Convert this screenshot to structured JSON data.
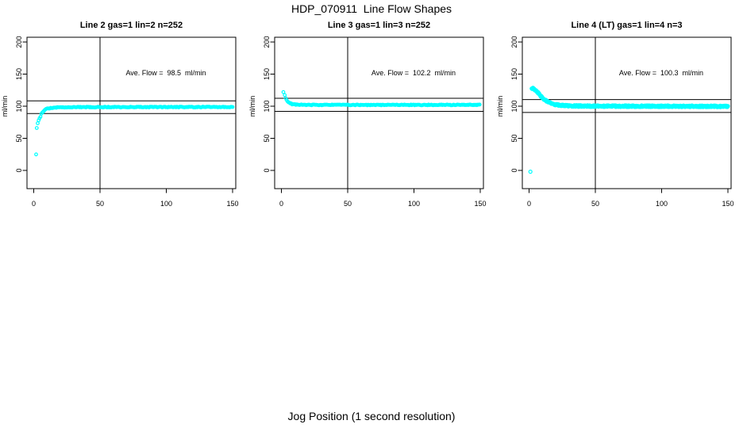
{
  "page": {
    "main_title": "HDP_070911  Line Flow Shapes",
    "x_axis_caption": "Jog Position (1 second resolution)"
  },
  "style": {
    "point_color": "#00FFFF",
    "line_color": "#000000",
    "background": "#FFFFFF"
  },
  "chart_data": [
    {
      "type": "scatter",
      "title": "Line 2 gas=1 lin=2 n=252",
      "annotation": "Ave. Flow =  98.5  ml/min",
      "ave_flow_ml_min": 98.5,
      "ylabel": "ml/min",
      "x_ticks": [
        0,
        50,
        100,
        150
      ],
      "y_ticks": [
        0,
        50,
        100,
        150,
        200
      ],
      "xlim": [
        -5,
        152
      ],
      "ylim": [
        -28,
        207
      ],
      "vline_x": 50,
      "hlines_y": [
        108.35,
        88.65
      ],
      "marker": "open-circle",
      "extra_points": [
        [
          1.8,
          25
        ],
        [
          2.3,
          66
        ]
      ],
      "curve_keypoints": [
        [
          3,
          74
        ],
        [
          4,
          79
        ],
        [
          5,
          83
        ],
        [
          5.5,
          86
        ],
        [
          6,
          89
        ],
        [
          7,
          91.5
        ],
        [
          8,
          93.5
        ],
        [
          9,
          95
        ],
        [
          10,
          96
        ],
        [
          12,
          97
        ],
        [
          15,
          97.8
        ],
        [
          20,
          98.2
        ],
        [
          30,
          98.5
        ],
        [
          50,
          98.6
        ],
        [
          100,
          98.7
        ],
        [
          150,
          98.8
        ]
      ],
      "n_traces": 1,
      "sample_step": 0.7,
      "jitter": 0.6,
      "point_radius": 1.8
    },
    {
      "type": "scatter",
      "title": "Line 3 gas=1 lin=3 n=252",
      "annotation": "Ave. Flow =  102.2  ml/min",
      "ave_flow_ml_min": 102.2,
      "ylabel": "ml/min",
      "x_ticks": [
        0,
        50,
        100,
        150
      ],
      "y_ticks": [
        0,
        50,
        100,
        150,
        200
      ],
      "xlim": [
        -5,
        152
      ],
      "ylim": [
        -28,
        207
      ],
      "vline_x": 50,
      "hlines_y": [
        112.42,
        91.98
      ],
      "marker": "open-circle",
      "extra_points": [
        [
          1.5,
          122
        ]
      ],
      "curve_keypoints": [
        [
          2.5,
          117
        ],
        [
          3,
          113.5
        ],
        [
          3.5,
          111.5
        ],
        [
          4,
          109.5
        ],
        [
          5,
          107
        ],
        [
          6,
          105.3
        ],
        [
          7,
          104.2
        ],
        [
          8,
          103.4
        ],
        [
          9,
          103
        ],
        [
          10,
          102.8
        ],
        [
          12,
          102.5
        ],
        [
          15,
          102.3
        ],
        [
          20,
          102.1
        ],
        [
          30,
          102
        ],
        [
          50,
          102
        ],
        [
          100,
          102
        ],
        [
          150,
          102
        ]
      ],
      "n_traces": 1,
      "sample_step": 0.7,
      "jitter": 0.6,
      "point_radius": 1.8
    },
    {
      "type": "scatter",
      "title": "Line 4 (LT) gas=1 lin=4 n=3",
      "annotation": "Ave. Flow =  100.3  ml/min",
      "ave_flow_ml_min": 100.3,
      "ylabel": "ml/min",
      "x_ticks": [
        0,
        50,
        100,
        150
      ],
      "y_ticks": [
        0,
        50,
        100,
        150,
        200
      ],
      "xlim": [
        -5,
        152
      ],
      "ylim": [
        -28,
        207
      ],
      "vline_x": 50,
      "hlines_y": [
        110.33,
        90.27
      ],
      "marker": "open-circle",
      "extra_points": [
        [
          1,
          -2
        ]
      ],
      "curve_keypoints": [
        [
          2,
          128
        ],
        [
          3,
          127.5
        ],
        [
          4,
          126.5
        ],
        [
          5,
          125
        ],
        [
          6,
          123
        ],
        [
          7,
          120.5
        ],
        [
          8,
          118
        ],
        [
          9,
          115.5
        ],
        [
          10,
          113.5
        ],
        [
          11,
          111.5
        ],
        [
          12,
          110
        ],
        [
          13,
          108.5
        ],
        [
          14,
          107
        ],
        [
          15,
          106
        ],
        [
          16,
          105
        ],
        [
          17,
          104.2
        ],
        [
          18,
          103.5
        ],
        [
          19,
          103
        ],
        [
          20,
          102.5
        ],
        [
          22,
          101.8
        ],
        [
          25,
          101.2
        ],
        [
          30,
          100.7
        ],
        [
          35,
          100.4
        ],
        [
          40,
          100.3
        ],
        [
          50,
          100.2
        ],
        [
          60,
          100.1
        ],
        [
          80,
          100
        ],
        [
          100,
          100
        ],
        [
          120,
          99.9
        ],
        [
          150,
          99.8
        ]
      ],
      "n_traces": 3,
      "sample_step": 0.8,
      "jitter": 1.2,
      "point_radius": 2
    }
  ]
}
